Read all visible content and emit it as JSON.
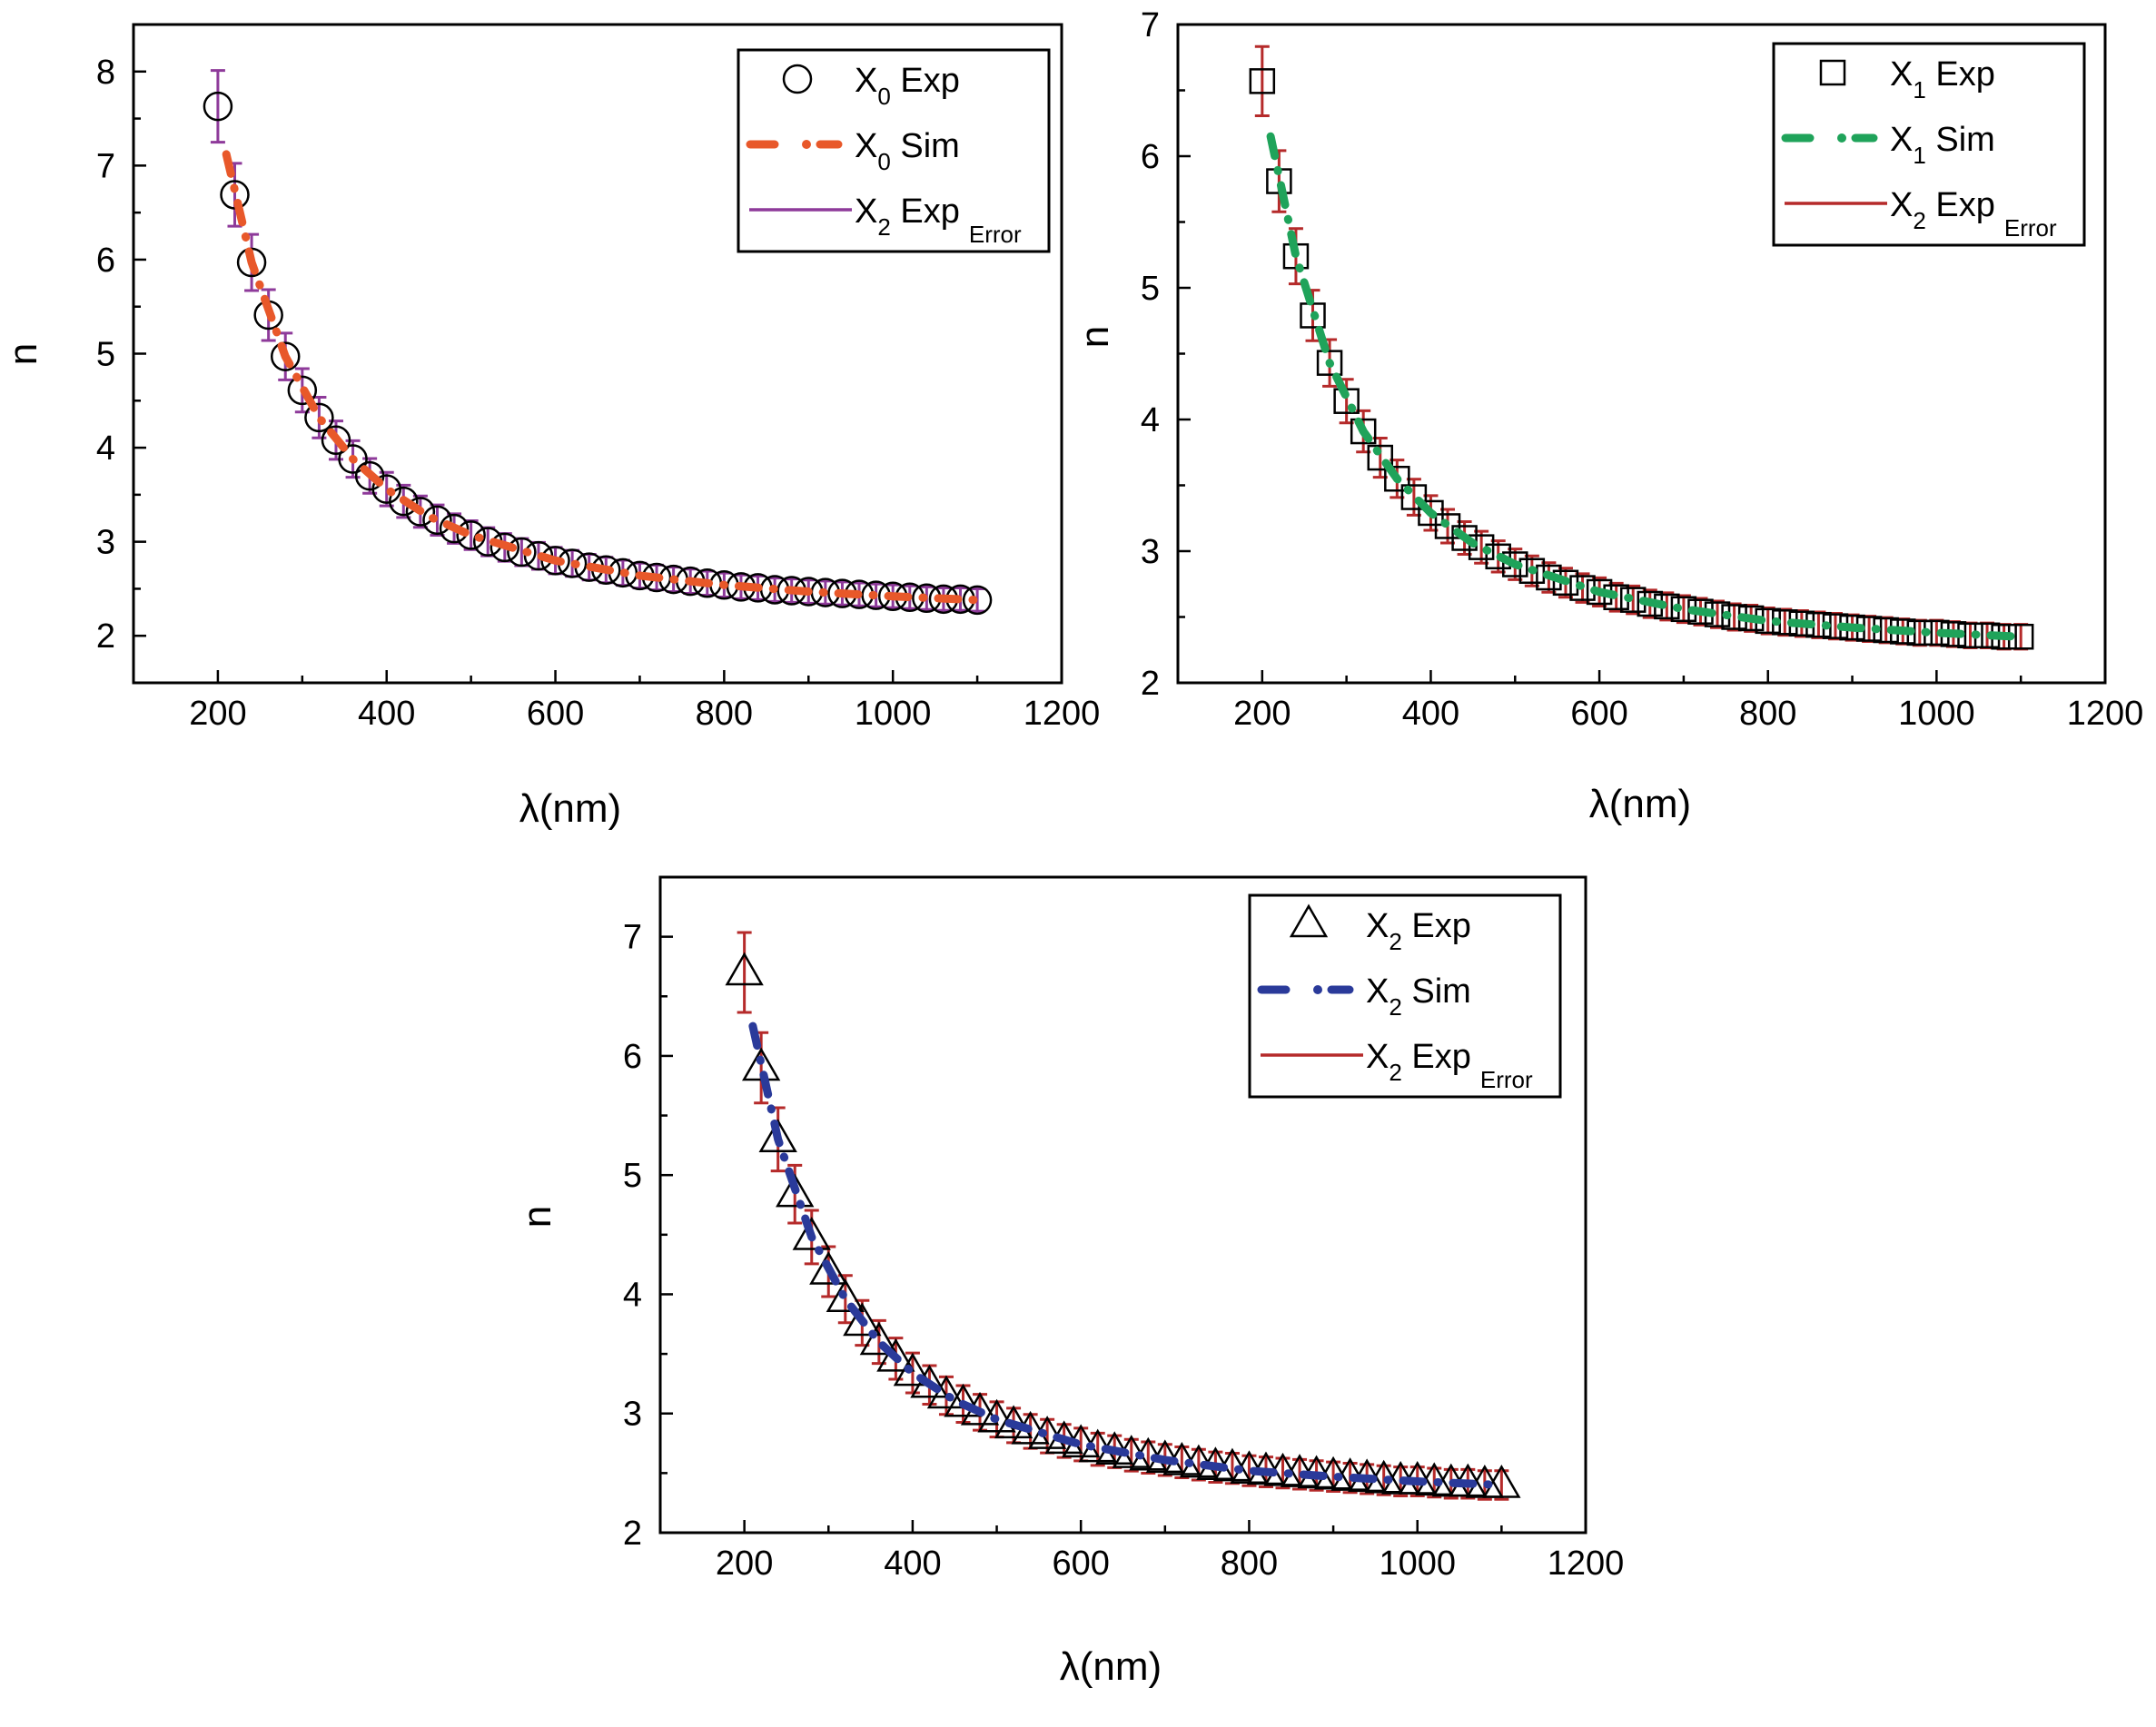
{
  "chart_data": [
    {
      "type": "scatter",
      "xlabel": "λ(nm)",
      "ylabel": "n",
      "xlim": [
        100,
        1200
      ],
      "ylim": [
        1.5,
        8.5
      ],
      "xticks": [
        200,
        400,
        600,
        800,
        1000,
        1200
      ],
      "yticks": [
        2,
        3,
        4,
        5,
        6,
        7,
        8
      ],
      "grid": false,
      "legend_position": "top-right",
      "legend": [
        {
          "marker": "circle",
          "label": "X",
          "sub": "0",
          "rest": " Exp",
          "sub2": ""
        },
        {
          "marker": "dash-dot",
          "label": "X",
          "sub": "0",
          "rest": " Sim",
          "sub2": ""
        },
        {
          "marker": "line",
          "label": "X",
          "sub": "2",
          "rest": " Exp",
          "sub2": "Error"
        }
      ],
      "colors": {
        "exp": "#000000",
        "sim": "#e8582a",
        "error": "#8e3a9a"
      },
      "y_error_percent": 5,
      "exp": {
        "x": [
          200,
          220,
          240,
          260,
          280,
          300,
          320,
          340,
          360,
          380,
          400,
          420,
          440,
          460,
          480,
          500,
          520,
          540,
          560,
          580,
          600,
          620,
          640,
          660,
          680,
          700,
          720,
          740,
          760,
          780,
          800,
          820,
          840,
          860,
          880,
          900,
          920,
          940,
          960,
          980,
          1000,
          1020,
          1040,
          1060,
          1080,
          1100
        ],
        "y": [
          7.63,
          6.69,
          5.97,
          5.41,
          4.97,
          4.61,
          4.32,
          4.08,
          3.88,
          3.7,
          3.56,
          3.43,
          3.32,
          3.23,
          3.14,
          3.07,
          3.0,
          2.94,
          2.89,
          2.85,
          2.8,
          2.77,
          2.73,
          2.7,
          2.67,
          2.64,
          2.62,
          2.6,
          2.58,
          2.56,
          2.54,
          2.52,
          2.51,
          2.49,
          2.48,
          2.47,
          2.46,
          2.45,
          2.44,
          2.43,
          2.42,
          2.41,
          2.4,
          2.39,
          2.39,
          2.38
        ]
      },
      "sim": {
        "x": [
          210,
          240,
          280,
          320,
          360,
          400,
          450,
          500,
          600,
          700,
          800,
          900,
          1000,
          1100
        ],
        "y": [
          7.12,
          5.97,
          4.97,
          4.32,
          3.88,
          3.56,
          3.27,
          3.07,
          2.8,
          2.64,
          2.54,
          2.47,
          2.42,
          2.38
        ]
      }
    },
    {
      "type": "scatter",
      "xlabel": "λ(nm)",
      "ylabel": "n",
      "xlim": [
        100,
        1200
      ],
      "ylim": [
        2,
        7
      ],
      "xticks": [
        200,
        400,
        600,
        800,
        1000,
        1200
      ],
      "yticks": [
        2,
        3,
        4,
        5,
        6,
        7
      ],
      "grid": false,
      "legend_position": "top-right",
      "legend": [
        {
          "marker": "square",
          "label": "X",
          "sub": "1",
          "rest": " Exp",
          "sub2": ""
        },
        {
          "marker": "dash-dot",
          "label": "X",
          "sub": "1",
          "rest": " Sim",
          "sub2": ""
        },
        {
          "marker": "line",
          "label": "X",
          "sub": "2",
          "rest": " Exp",
          "sub2": "Error"
        }
      ],
      "colors": {
        "exp": "#000000",
        "sim": "#1fa35a",
        "error": "#b52a2a"
      },
      "y_error_percent": 4,
      "exp": {
        "x": [
          200,
          220,
          240,
          260,
          280,
          300,
          320,
          340,
          360,
          380,
          400,
          420,
          440,
          460,
          480,
          500,
          520,
          540,
          560,
          580,
          600,
          620,
          640,
          660,
          680,
          700,
          720,
          740,
          760,
          780,
          800,
          820,
          840,
          860,
          880,
          900,
          920,
          940,
          960,
          980,
          1000,
          1020,
          1040,
          1060,
          1080,
          1100
        ],
        "y": [
          6.57,
          5.81,
          5.24,
          4.79,
          4.43,
          4.14,
          3.91,
          3.71,
          3.55,
          3.41,
          3.29,
          3.19,
          3.1,
          3.03,
          2.96,
          2.9,
          2.85,
          2.8,
          2.76,
          2.72,
          2.69,
          2.65,
          2.63,
          2.6,
          2.58,
          2.56,
          2.54,
          2.52,
          2.5,
          2.49,
          2.47,
          2.46,
          2.45,
          2.44,
          2.43,
          2.42,
          2.41,
          2.4,
          2.39,
          2.38,
          2.38,
          2.37,
          2.36,
          2.36,
          2.35,
          2.35
        ]
      },
      "sim": {
        "x": [
          210,
          240,
          280,
          320,
          360,
          400,
          450,
          500,
          600,
          700,
          800,
          900,
          1000,
          1100
        ],
        "y": [
          6.15,
          5.24,
          4.43,
          3.91,
          3.55,
          3.29,
          3.06,
          2.9,
          2.69,
          2.56,
          2.47,
          2.42,
          2.38,
          2.35
        ]
      }
    },
    {
      "type": "scatter",
      "xlabel": "λ(nm)",
      "ylabel": "n",
      "xlim": [
        100,
        1200
      ],
      "ylim": [
        2,
        7.5
      ],
      "xticks": [
        200,
        400,
        600,
        800,
        1000,
        1200
      ],
      "yticks": [
        2,
        3,
        4,
        5,
        6,
        7
      ],
      "grid": false,
      "legend_position": "top-right",
      "legend": [
        {
          "marker": "triangle",
          "label": "X",
          "sub": "2",
          "rest": " Exp",
          "sub2": ""
        },
        {
          "marker": "dash-dot",
          "label": "X",
          "sub": "2",
          "rest": " Sim",
          "sub2": ""
        },
        {
          "marker": "line",
          "label": "X",
          "sub": "2",
          "rest": " Exp",
          "sub2": "Error"
        }
      ],
      "colors": {
        "exp": "#000000",
        "sim": "#2a3a9a",
        "error": "#b52a2a"
      },
      "y_error_percent": 5,
      "exp": {
        "x": [
          200,
          220,
          240,
          260,
          280,
          300,
          320,
          340,
          360,
          380,
          400,
          420,
          440,
          460,
          480,
          500,
          520,
          540,
          560,
          580,
          600,
          620,
          640,
          660,
          680,
          700,
          720,
          740,
          760,
          780,
          800,
          820,
          840,
          860,
          880,
          900,
          920,
          940,
          960,
          980,
          1000,
          1020,
          1040,
          1060,
          1080,
          1100
        ],
        "y": [
          6.7,
          5.9,
          5.3,
          4.84,
          4.48,
          4.19,
          3.96,
          3.76,
          3.6,
          3.46,
          3.34,
          3.24,
          3.15,
          3.08,
          3.01,
          2.95,
          2.9,
          2.85,
          2.81,
          2.77,
          2.74,
          2.7,
          2.68,
          2.65,
          2.63,
          2.61,
          2.59,
          2.57,
          2.55,
          2.54,
          2.52,
          2.51,
          2.5,
          2.49,
          2.48,
          2.47,
          2.46,
          2.45,
          2.44,
          2.43,
          2.43,
          2.42,
          2.41,
          2.41,
          2.4,
          2.4
        ]
      },
      "sim": {
        "x": [
          210,
          240,
          280,
          320,
          360,
          400,
          450,
          500,
          600,
          700,
          800,
          900,
          1000,
          1100
        ],
        "y": [
          6.25,
          5.3,
          4.48,
          3.96,
          3.6,
          3.34,
          3.11,
          2.95,
          2.74,
          2.61,
          2.52,
          2.47,
          2.43,
          2.4
        ]
      }
    }
  ]
}
